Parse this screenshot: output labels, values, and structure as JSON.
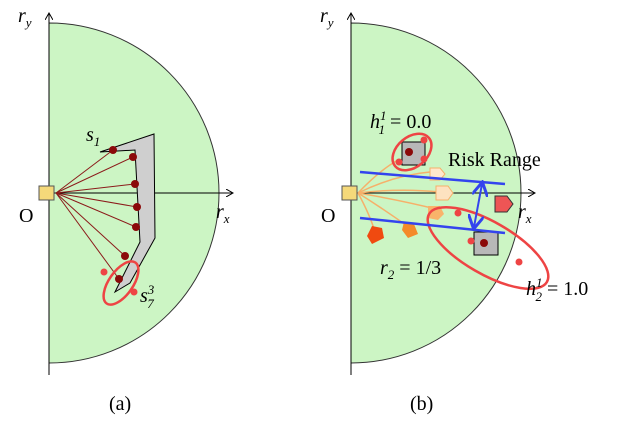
{
  "panel_a": {
    "y_axis": [
      "r",
      "y"
    ],
    "x_axis": [
      "r",
      "x"
    ],
    "origin": "O",
    "s1": [
      "s",
      "1"
    ],
    "s73": [
      "s",
      "3",
      "7"
    ],
    "caption": "(a)"
  },
  "panel_b": {
    "y_axis": [
      "r",
      "y"
    ],
    "x_axis": [
      "r",
      "x"
    ],
    "origin": "O",
    "h11": [
      "h",
      "1",
      "1",
      " = 0.0"
    ],
    "risk": "Risk Range",
    "r2": [
      "r",
      "2",
      " = 1/3"
    ],
    "h21": [
      "h",
      "1",
      "2",
      " = 1.0"
    ],
    "caption": "(b)"
  }
}
